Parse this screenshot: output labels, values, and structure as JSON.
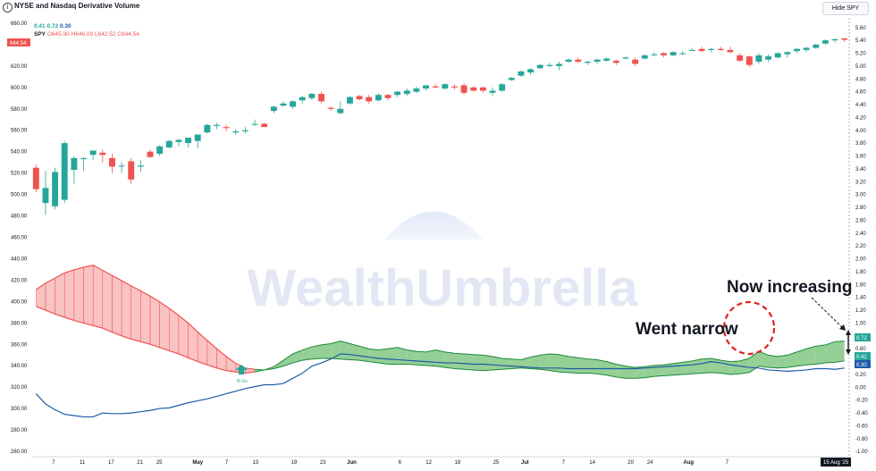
{
  "header": {
    "info_icon": "i",
    "title": "NYSE and Nasdaq Derivative Volume",
    "hide_button": "Hide SPY"
  },
  "legend": {
    "indicator_values": [
      "0.41",
      "0.72",
      "0.30"
    ],
    "symbol": "SPY",
    "ohlc": "O645.90 H646.09 L642.52 C644.54"
  },
  "colors": {
    "up": "#26a69a",
    "down": "#ef5350",
    "cloud_green": "#66bb6a",
    "cloud_red": "#ef5350",
    "blue_line": "#1e5aa8",
    "watermark": "#e3e6f5"
  },
  "watermark": "WealthUmbrella",
  "annotations": {
    "went_narrow": "Went narrow",
    "now_increasing": "Now increasing",
    "buy_marker": "B-Go"
  },
  "chart_data": {
    "type": "candlestick",
    "title": "NYSE and Nasdaq Derivative Volume",
    "x_tick_labels": [
      "7",
      "11",
      "17",
      "21",
      "25",
      "May",
      "7",
      "13",
      "19",
      "23",
      "Jun",
      "6",
      "12",
      "18",
      "25",
      "Jul",
      "7",
      "14",
      "20",
      "24",
      "Aug",
      "7",
      "15 Aug '25"
    ],
    "left_axis": {
      "label": "SPY",
      "ticks": [
        "660.00",
        "640.00",
        "620.00",
        "600.00",
        "580.00",
        "560.00",
        "540.00",
        "520.00",
        "500.00",
        "480.00",
        "460.00",
        "440.00",
        "420.00",
        "400.00",
        "380.00",
        "360.00",
        "340.00",
        "320.00",
        "300.00",
        "280.00",
        "260.00"
      ],
      "range": [
        255,
        665
      ],
      "last_value": "644.54"
    },
    "right_axis": {
      "ticks": [
        "5.60",
        "5.40",
        "5.20",
        "5.00",
        "4.80",
        "4.60",
        "4.40",
        "4.20",
        "4.00",
        "3.80",
        "3.60",
        "3.40",
        "3.20",
        "3.00",
        "2.80",
        "2.60",
        "2.40",
        "2.20",
        "2.00",
        "1.80",
        "1.60",
        "1.40",
        "1.20",
        "1.00",
        "0.80",
        "0.60",
        "0.40",
        "0.20",
        "0.00",
        "-0.20",
        "-0.40",
        "-0.60",
        "-0.80",
        "-1.00"
      ],
      "range": [
        -1.08,
        5.75
      ],
      "last_values": [
        "0.72",
        "0.41",
        "0.30"
      ]
    },
    "spy_candles": [
      {
        "o": 525,
        "h": 528,
        "l": 502,
        "c": 505
      },
      {
        "o": 492,
        "h": 522,
        "l": 481,
        "c": 506
      },
      {
        "o": 489,
        "h": 525,
        "l": 486,
        "c": 521
      },
      {
        "o": 495,
        "h": 550,
        "l": 492,
        "c": 548
      },
      {
        "o": 523,
        "h": 536,
        "l": 510,
        "c": 534
      },
      {
        "o": 533,
        "h": 535,
        "l": 522,
        "c": 534
      },
      {
        "o": 537,
        "h": 541,
        "l": 532,
        "c": 541
      },
      {
        "o": 539,
        "h": 542,
        "l": 530,
        "c": 537
      },
      {
        "o": 534,
        "h": 538,
        "l": 520,
        "c": 526
      },
      {
        "o": 527,
        "h": 530,
        "l": 520,
        "c": 527
      },
      {
        "o": 531,
        "h": 534,
        "l": 510,
        "c": 514
      },
      {
        "o": 526,
        "h": 532,
        "l": 521,
        "c": 527
      },
      {
        "o": 540,
        "h": 542,
        "l": 534,
        "c": 535
      },
      {
        "o": 538,
        "h": 546,
        "l": 536,
        "c": 545
      },
      {
        "o": 544,
        "h": 551,
        "l": 543,
        "c": 550
      },
      {
        "o": 549,
        "h": 552,
        "l": 545,
        "c": 551
      },
      {
        "o": 548,
        "h": 553,
        "l": 544,
        "c": 553
      },
      {
        "o": 550,
        "h": 556,
        "l": 543,
        "c": 556
      },
      {
        "o": 558,
        "h": 566,
        "l": 557,
        "c": 565
      },
      {
        "o": 564,
        "h": 567,
        "l": 561,
        "c": 565
      },
      {
        "o": 563,
        "h": 565,
        "l": 559,
        "c": 562
      },
      {
        "o": 558,
        "h": 561,
        "l": 556,
        "c": 559
      },
      {
        "o": 559,
        "h": 563,
        "l": 557,
        "c": 560
      },
      {
        "o": 566,
        "h": 570,
        "l": 564,
        "c": 566
      },
      {
        "o": 566,
        "h": 567,
        "l": 563,
        "c": 563
      },
      {
        "o": 578,
        "h": 583,
        "l": 576,
        "c": 582
      },
      {
        "o": 583,
        "h": 587,
        "l": 582,
        "c": 585
      },
      {
        "o": 582,
        "h": 588,
        "l": 580,
        "c": 587
      },
      {
        "o": 588,
        "h": 592,
        "l": 585,
        "c": 591
      },
      {
        "o": 590,
        "h": 595,
        "l": 588,
        "c": 594
      },
      {
        "o": 594,
        "h": 596,
        "l": 585,
        "c": 587
      },
      {
        "o": 581,
        "h": 582,
        "l": 578,
        "c": 580
      },
      {
        "o": 576,
        "h": 587,
        "l": 575,
        "c": 580
      },
      {
        "o": 585,
        "h": 592,
        "l": 584,
        "c": 591
      },
      {
        "o": 592,
        "h": 593,
        "l": 588,
        "c": 589
      },
      {
        "o": 591,
        "h": 593,
        "l": 585,
        "c": 587
      },
      {
        "o": 588,
        "h": 595,
        "l": 587,
        "c": 593
      },
      {
        "o": 593,
        "h": 594,
        "l": 588,
        "c": 590
      },
      {
        "o": 593,
        "h": 597,
        "l": 591,
        "c": 596
      },
      {
        "o": 594,
        "h": 599,
        "l": 592,
        "c": 597
      },
      {
        "o": 596,
        "h": 601,
        "l": 595,
        "c": 599
      },
      {
        "o": 599,
        "h": 602,
        "l": 597,
        "c": 602
      },
      {
        "o": 601,
        "h": 603,
        "l": 599,
        "c": 600
      },
      {
        "o": 599,
        "h": 604,
        "l": 598,
        "c": 603
      },
      {
        "o": 601,
        "h": 603,
        "l": 598,
        "c": 600
      },
      {
        "o": 602,
        "h": 604,
        "l": 593,
        "c": 595
      },
      {
        "o": 600,
        "h": 601,
        "l": 596,
        "c": 597
      },
      {
        "o": 600,
        "h": 601,
        "l": 595,
        "c": 597
      },
      {
        "o": 595,
        "h": 600,
        "l": 592,
        "c": 597
      },
      {
        "o": 597,
        "h": 604,
        "l": 596,
        "c": 603
      },
      {
        "o": 607,
        "h": 610,
        "l": 606,
        "c": 609
      },
      {
        "o": 611,
        "h": 616,
        "l": 610,
        "c": 615
      },
      {
        "o": 614,
        "h": 618,
        "l": 612,
        "c": 617
      },
      {
        "o": 618,
        "h": 622,
        "l": 617,
        "c": 621
      },
      {
        "o": 620,
        "h": 623,
        "l": 619,
        "c": 621
      },
      {
        "o": 620,
        "h": 624,
        "l": 616,
        "c": 622
      },
      {
        "o": 624,
        "h": 627,
        "l": 623,
        "c": 626
      },
      {
        "o": 626,
        "h": 628,
        "l": 623,
        "c": 624
      },
      {
        "o": 623,
        "h": 625,
        "l": 621,
        "c": 624
      },
      {
        "o": 624,
        "h": 627,
        "l": 622,
        "c": 626
      },
      {
        "o": 625,
        "h": 628,
        "l": 624,
        "c": 627
      },
      {
        "o": 625,
        "h": 626,
        "l": 621,
        "c": 623
      },
      {
        "o": 627,
        "h": 629,
        "l": 626,
        "c": 628
      },
      {
        "o": 626,
        "h": 628,
        "l": 620,
        "c": 622
      },
      {
        "o": 627,
        "h": 631,
        "l": 626,
        "c": 630
      },
      {
        "o": 631,
        "h": 633,
        "l": 629,
        "c": 631
      },
      {
        "o": 632,
        "h": 633,
        "l": 628,
        "c": 630
      },
      {
        "o": 630,
        "h": 634,
        "l": 629,
        "c": 633
      },
      {
        "o": 632,
        "h": 634,
        "l": 630,
        "c": 632
      },
      {
        "o": 635,
        "h": 637,
        "l": 634,
        "c": 635
      },
      {
        "o": 636,
        "h": 638,
        "l": 633,
        "c": 634
      },
      {
        "o": 635,
        "h": 637,
        "l": 633,
        "c": 636
      },
      {
        "o": 636,
        "h": 638,
        "l": 634,
        "c": 635
      },
      {
        "o": 635,
        "h": 638,
        "l": 632,
        "c": 633
      },
      {
        "o": 630,
        "h": 632,
        "l": 624,
        "c": 625
      },
      {
        "o": 629,
        "h": 630,
        "l": 619,
        "c": 621
      },
      {
        "o": 624,
        "h": 632,
        "l": 622,
        "c": 630
      },
      {
        "o": 626,
        "h": 631,
        "l": 624,
        "c": 629
      },
      {
        "o": 628,
        "h": 633,
        "l": 627,
        "c": 632
      },
      {
        "o": 631,
        "h": 634,
        "l": 628,
        "c": 633
      },
      {
        "o": 634,
        "h": 637,
        "l": 632,
        "c": 636
      },
      {
        "o": 635,
        "h": 638,
        "l": 633,
        "c": 637
      },
      {
        "o": 637,
        "h": 641,
        "l": 636,
        "c": 640
      },
      {
        "o": 641,
        "h": 645,
        "l": 640,
        "c": 644
      },
      {
        "o": 644,
        "h": 646,
        "l": 642,
        "c": 645
      },
      {
        "o": 645.9,
        "h": 646.09,
        "l": 642.52,
        "c": 644.54
      }
    ],
    "cloud_upper": [
      1.52,
      1.62,
      1.7,
      1.78,
      1.83,
      1.87,
      1.9,
      1.82,
      1.74,
      1.66,
      1.58,
      1.5,
      1.42,
      1.33,
      1.23,
      1.12,
      1.0,
      0.86,
      0.73,
      0.6,
      0.48,
      0.37,
      0.3,
      0.28,
      0.27,
      0.32,
      0.42,
      0.52,
      0.58,
      0.63,
      0.66,
      0.68,
      0.72,
      0.68,
      0.64,
      0.6,
      0.58,
      0.6,
      0.62,
      0.58,
      0.56,
      0.55,
      0.58,
      0.55,
      0.53,
      0.52,
      0.51,
      0.5,
      0.48,
      0.45,
      0.44,
      0.43,
      0.47,
      0.5,
      0.52,
      0.51,
      0.48,
      0.46,
      0.44,
      0.43,
      0.4,
      0.36,
      0.33,
      0.31,
      0.32,
      0.34,
      0.35,
      0.37,
      0.39,
      0.41,
      0.44,
      0.45,
      0.42,
      0.4,
      0.41,
      0.45,
      0.56,
      0.5,
      0.48,
      0.5,
      0.55,
      0.6,
      0.64,
      0.66,
      0.71,
      0.72
    ],
    "cloud_lower": [
      1.26,
      1.2,
      1.14,
      1.09,
      1.04,
      1.0,
      0.96,
      0.92,
      0.86,
      0.8,
      0.75,
      0.71,
      0.67,
      0.62,
      0.57,
      0.52,
      0.46,
      0.4,
      0.35,
      0.3,
      0.26,
      0.24,
      0.22,
      0.24,
      0.27,
      0.29,
      0.33,
      0.38,
      0.42,
      0.44,
      0.45,
      0.45,
      0.44,
      0.43,
      0.42,
      0.4,
      0.38,
      0.36,
      0.36,
      0.36,
      0.35,
      0.34,
      0.33,
      0.31,
      0.29,
      0.28,
      0.27,
      0.26,
      0.27,
      0.28,
      0.29,
      0.3,
      0.29,
      0.28,
      0.26,
      0.24,
      0.23,
      0.22,
      0.22,
      0.21,
      0.19,
      0.16,
      0.14,
      0.14,
      0.15,
      0.17,
      0.18,
      0.19,
      0.2,
      0.21,
      0.22,
      0.23,
      0.22,
      0.2,
      0.21,
      0.23,
      0.33,
      0.31,
      0.3,
      0.31,
      0.33,
      0.35,
      0.36,
      0.38,
      0.39,
      0.41
    ],
    "blue_line": [
      -0.1,
      -0.26,
      -0.35,
      -0.42,
      -0.44,
      -0.46,
      -0.46,
      -0.4,
      -0.41,
      -0.41,
      -0.4,
      -0.38,
      -0.36,
      -0.33,
      -0.32,
      -0.28,
      -0.24,
      -0.21,
      -0.18,
      -0.14,
      -0.1,
      -0.06,
      -0.02,
      0.01,
      0.04,
      0.04,
      0.06,
      0.14,
      0.22,
      0.33,
      0.38,
      0.44,
      0.52,
      0.51,
      0.49,
      0.47,
      0.45,
      0.44,
      0.43,
      0.42,
      0.41,
      0.4,
      0.39,
      0.38,
      0.38,
      0.37,
      0.36,
      0.36,
      0.35,
      0.34,
      0.33,
      0.32,
      0.31,
      0.3,
      0.3,
      0.3,
      0.29,
      0.29,
      0.29,
      0.29,
      0.29,
      0.29,
      0.29,
      0.29,
      0.3,
      0.31,
      0.32,
      0.33,
      0.34,
      0.35,
      0.37,
      0.4,
      0.38,
      0.35,
      0.33,
      0.31,
      0.3,
      0.27,
      0.26,
      0.25,
      0.26,
      0.27,
      0.29,
      0.29,
      0.28,
      0.3
    ]
  }
}
